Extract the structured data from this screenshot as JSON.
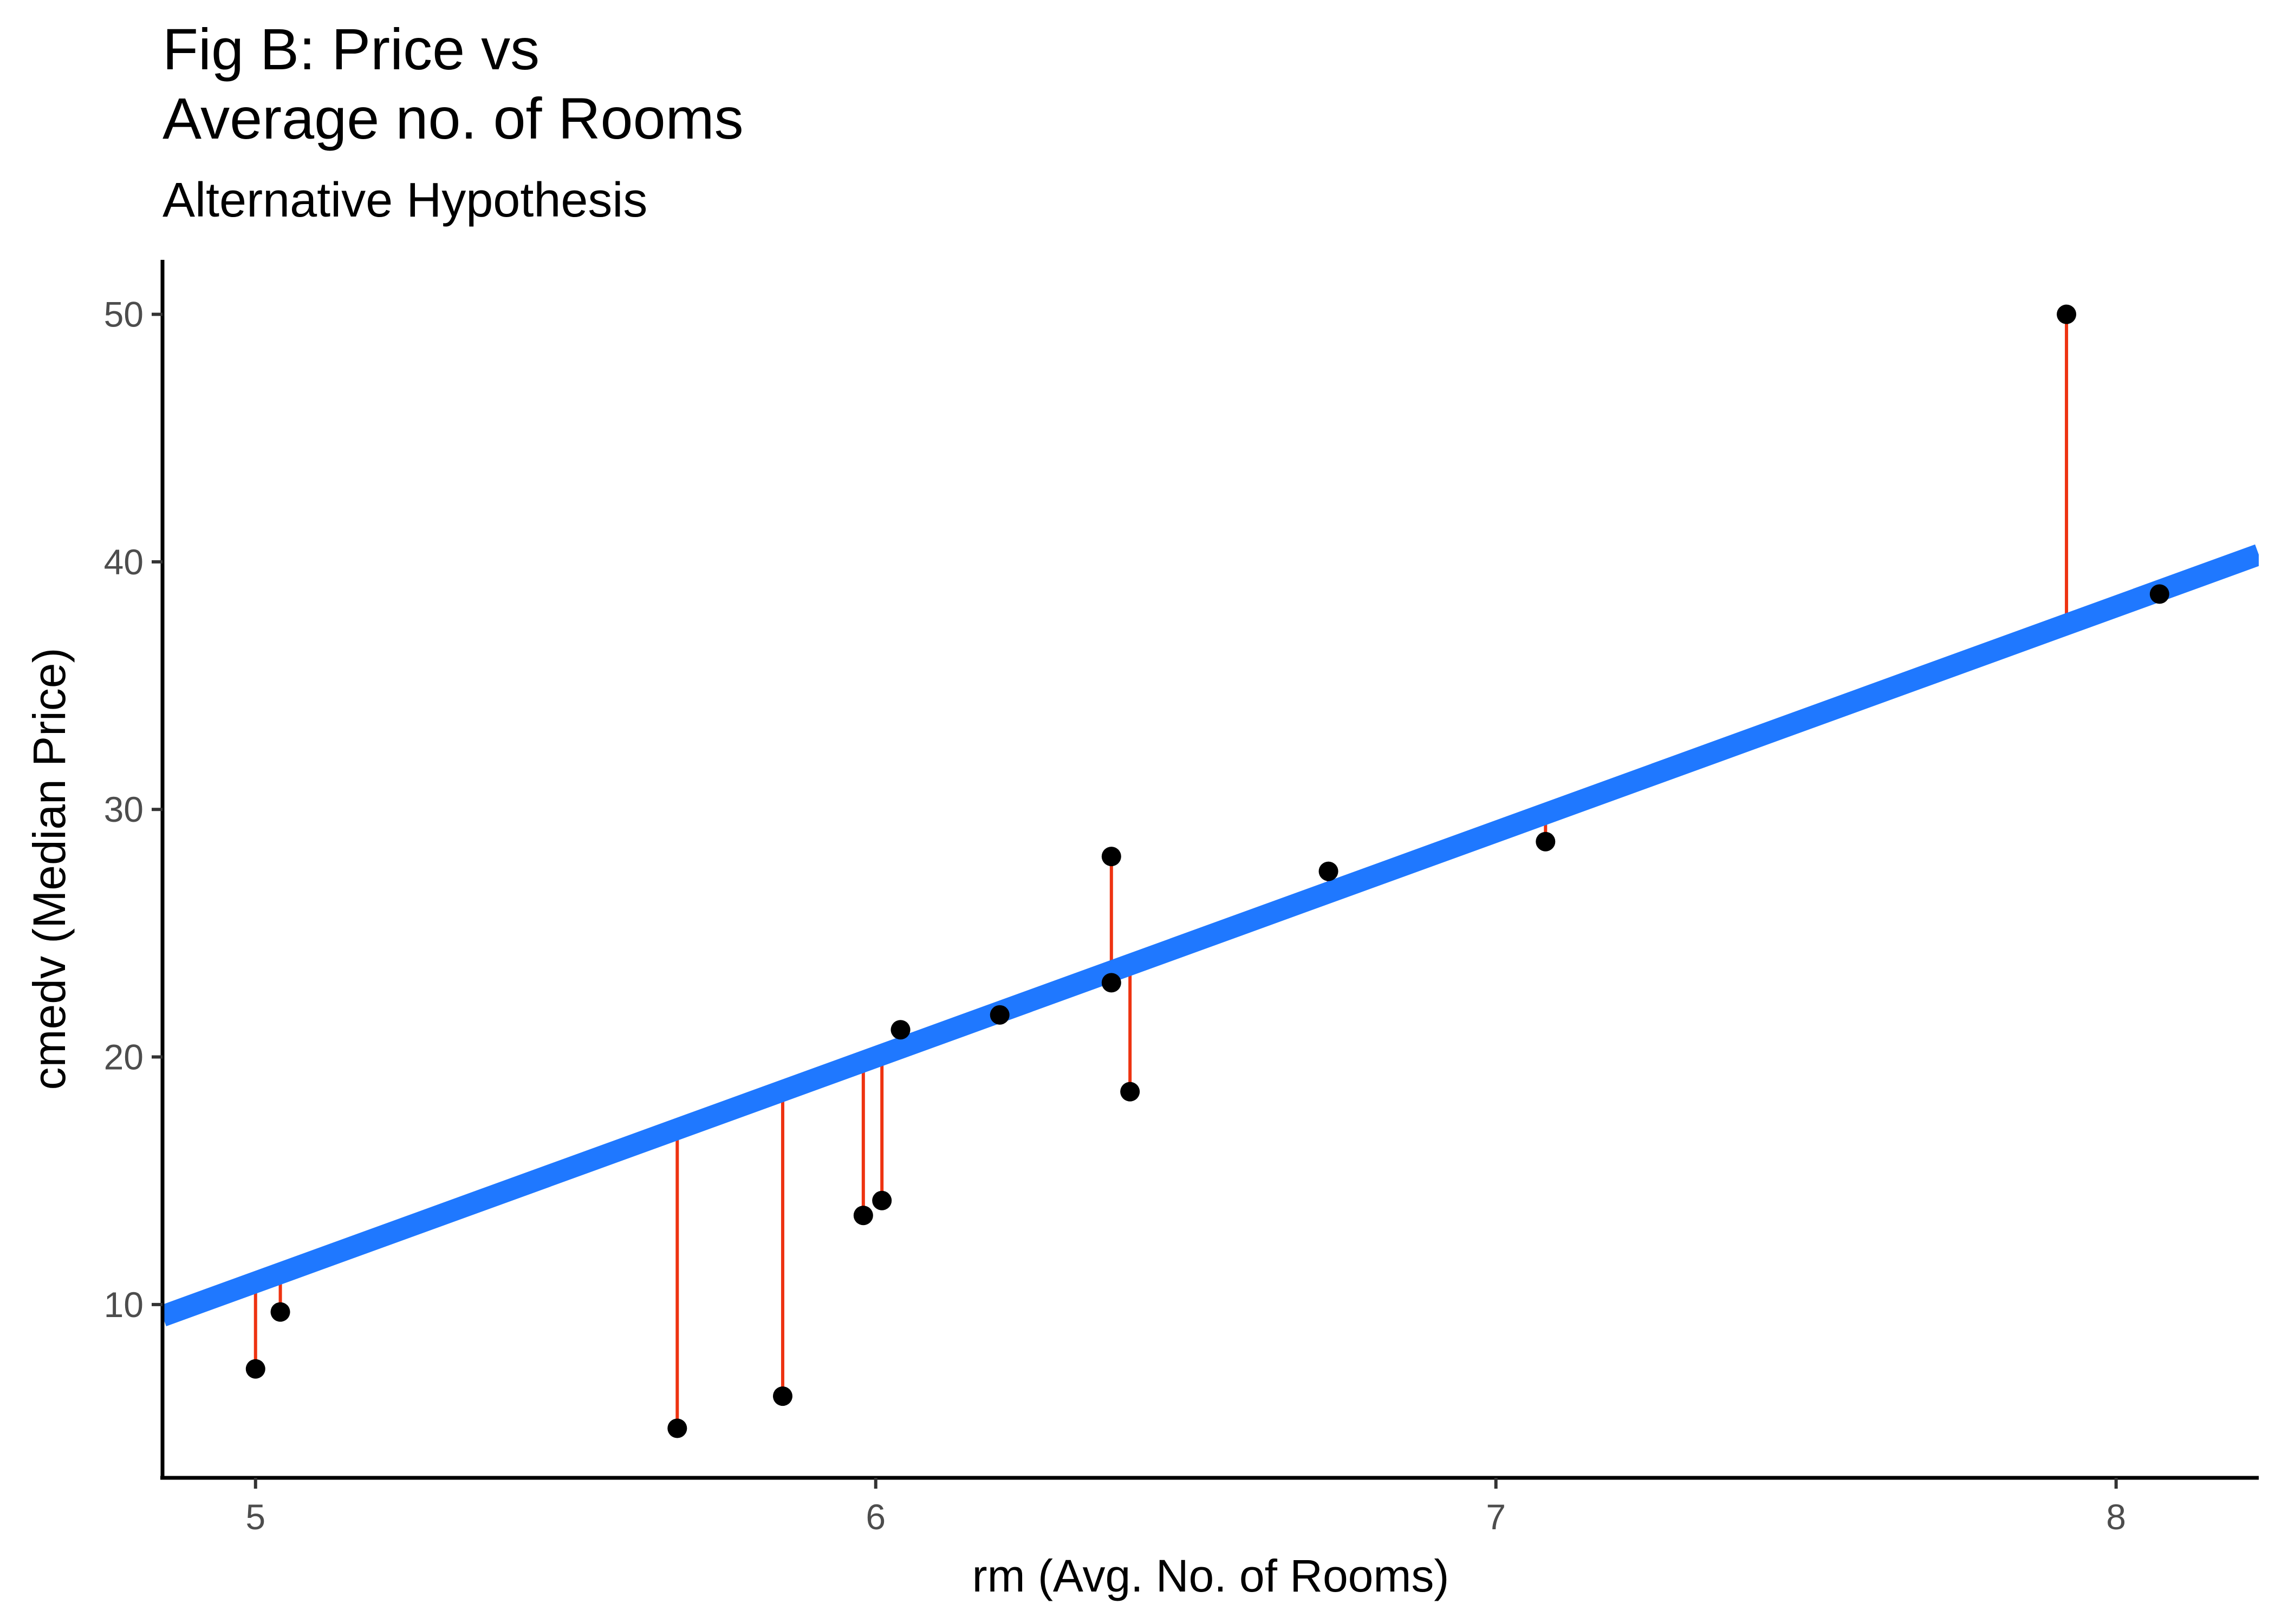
{
  "chart_data": {
    "type": "scatter",
    "title_lines": [
      "Fig B: Price vs",
      "Average no. of Rooms"
    ],
    "subtitle": "Alternative Hypothesis",
    "xlabel": "rm (Avg. No. of Rooms)",
    "ylabel": "cmedv (Median Price)",
    "xlim": [
      4.85,
      8.23
    ],
    "ylim": [
      3.0,
      52.2
    ],
    "xticks": [
      5,
      6,
      7,
      8
    ],
    "yticks": [
      10,
      20,
      30,
      40,
      50
    ],
    "grid": false,
    "legend": "none",
    "points": [
      {
        "x": 5.0,
        "y": 7.4
      },
      {
        "x": 5.04,
        "y": 9.7
      },
      {
        "x": 5.68,
        "y": 5.0
      },
      {
        "x": 5.85,
        "y": 6.3
      },
      {
        "x": 5.98,
        "y": 13.6
      },
      {
        "x": 6.01,
        "y": 14.2
      },
      {
        "x": 6.04,
        "y": 21.1
      },
      {
        "x": 6.2,
        "y": 21.7
      },
      {
        "x": 6.38,
        "y": 23.0
      },
      {
        "x": 6.38,
        "y": 28.1
      },
      {
        "x": 6.41,
        "y": 18.6
      },
      {
        "x": 6.73,
        "y": 27.5
      },
      {
        "x": 7.08,
        "y": 28.7
      },
      {
        "x": 7.92,
        "y": 50.0
      },
      {
        "x": 8.07,
        "y": 38.7
      }
    ],
    "fit_line": {
      "slope": 9.1,
      "intercept": -34.6
    },
    "residuals": "vertical segments from each point to the fitted line",
    "colors": {
      "points": "#000000",
      "fit_line": "#1f78ff",
      "residuals": "#ee3311",
      "axis": "#000000"
    }
  }
}
